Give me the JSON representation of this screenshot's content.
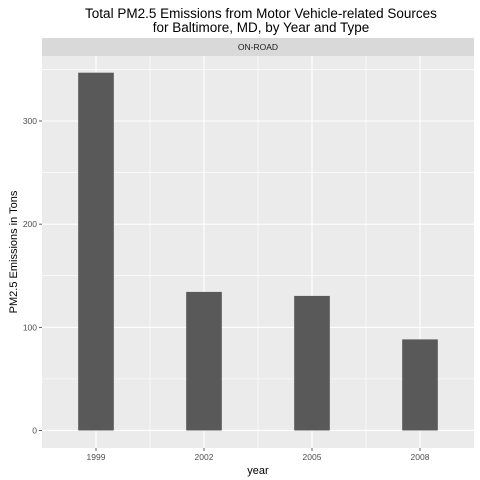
{
  "chart_data": {
    "type": "bar",
    "title": "Total PM2.5 Emissions from Motor Vehicle-related Sources",
    "subtitle": "for Baltimore, MD, by Year and Type",
    "facet_label": "ON-ROAD",
    "xlabel": "year",
    "ylabel": "PM2.5 Emissions in Tons",
    "categories": [
      "1999",
      "2002",
      "2005",
      "2008"
    ],
    "values": [
      346.82,
      134.31,
      130.43,
      88.28
    ],
    "ylim": [
      -17,
      363
    ],
    "yticks": [
      0,
      100,
      200,
      300
    ],
    "grid": true,
    "legend": "none",
    "colors": {
      "bar": "#595959",
      "panel": "#ebebeb",
      "strip": "#d9d9d9",
      "grid": "#ffffff"
    }
  }
}
